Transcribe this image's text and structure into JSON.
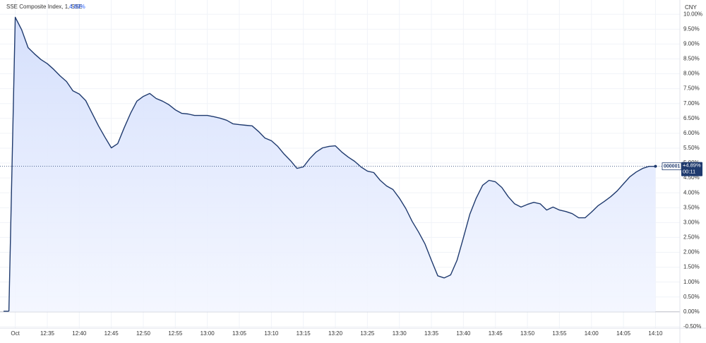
{
  "chart_data": {
    "type": "area",
    "title": "SSE Composite Index, 1, SSE",
    "header_change": "4.89%",
    "currency": "CNY",
    "last_label": {
      "symbol": "000001",
      "change": "+4.89%",
      "countdown": "00:11"
    },
    "color": "#1f3a6e",
    "fill": "#dce6fd",
    "x": [
      "12:29",
      "12:30",
      "12:31",
      "12:32",
      "12:33",
      "12:34",
      "12:35",
      "12:36",
      "12:37",
      "12:38",
      "12:39",
      "12:40",
      "12:41",
      "12:42",
      "12:43",
      "12:44",
      "12:45",
      "12:46",
      "12:47",
      "12:48",
      "12:49",
      "12:50",
      "12:51",
      "12:52",
      "12:53",
      "12:54",
      "12:55",
      "12:56",
      "12:57",
      "12:58",
      "12:59",
      "13:00",
      "13:01",
      "13:02",
      "13:03",
      "13:04",
      "13:05",
      "13:06",
      "13:07",
      "13:08",
      "13:09",
      "13:10",
      "13:11",
      "13:12",
      "13:13",
      "13:14",
      "13:15",
      "13:16",
      "13:17",
      "13:18",
      "13:19",
      "13:20",
      "13:21",
      "13:22",
      "13:23",
      "13:24",
      "13:25",
      "13:26",
      "13:27",
      "13:28",
      "13:29",
      "13:30",
      "13:31",
      "13:32",
      "13:33",
      "13:34",
      "13:35",
      "13:36",
      "13:37",
      "13:38",
      "13:39",
      "13:40",
      "13:41",
      "13:42",
      "13:43",
      "13:44",
      "13:45",
      "13:46",
      "13:47",
      "13:48",
      "13:49",
      "13:50",
      "13:51",
      "13:52",
      "13:53",
      "13:54",
      "13:55",
      "13:56",
      "13:57",
      "13:58",
      "13:59",
      "14:00",
      "14:01",
      "14:02",
      "14:03",
      "14:04",
      "14:05",
      "14:06",
      "14:07",
      "14:08",
      "14:09",
      "14:10"
    ],
    "values": [
      0.02,
      9.9,
      9.48,
      8.88,
      8.67,
      8.48,
      8.34,
      8.15,
      7.93,
      7.74,
      7.43,
      7.32,
      7.1,
      6.67,
      6.25,
      5.87,
      5.51,
      5.65,
      6.18,
      6.67,
      7.08,
      7.24,
      7.34,
      7.17,
      7.08,
      6.96,
      6.79,
      6.67,
      6.65,
      6.6,
      6.6,
      6.6,
      6.56,
      6.51,
      6.44,
      6.32,
      6.29,
      6.27,
      6.25,
      6.06,
      5.84,
      5.75,
      5.56,
      5.3,
      5.08,
      4.82,
      4.87,
      5.15,
      5.37,
      5.51,
      5.56,
      5.58,
      5.37,
      5.2,
      5.06,
      4.87,
      4.73,
      4.68,
      4.42,
      4.23,
      4.11,
      3.82,
      3.47,
      3.04,
      2.68,
      2.28,
      1.73,
      1.21,
      1.14,
      1.24,
      1.73,
      2.49,
      3.28,
      3.82,
      4.25,
      4.42,
      4.37,
      4.18,
      3.87,
      3.63,
      3.52,
      3.61,
      3.68,
      3.63,
      3.42,
      3.52,
      3.42,
      3.37,
      3.3,
      3.16,
      3.16,
      3.35,
      3.56,
      3.71,
      3.87,
      4.06,
      4.3,
      4.54,
      4.7,
      4.82,
      4.89,
      4.89
    ],
    "xticks": [
      {
        "value": "12:30",
        "label": "Oct"
      },
      "12:35",
      "12:40",
      "12:45",
      "12:50",
      "12:55",
      "13:00",
      "13:05",
      "13:10",
      "13:15",
      "13:20",
      "13:25",
      "13:30",
      "13:35",
      "13:40",
      "13:45",
      "13:50",
      "13:55",
      "14:00",
      "14:05",
      "14:10"
    ],
    "xlim": [
      "12:28",
      "14:14"
    ],
    "ylim": [
      -0.55,
      10.48
    ],
    "yticks": [
      {
        "value": -0.5,
        "label": "-0.50%"
      },
      {
        "value": 0,
        "label": "0.00%"
      },
      {
        "value": 0.5,
        "label": "0.50%"
      },
      {
        "value": 1,
        "label": "1.00%"
      },
      {
        "value": 1.5,
        "label": "1.50%"
      },
      {
        "value": 2,
        "label": "2.00%"
      },
      {
        "value": 2.5,
        "label": "2.50%"
      },
      {
        "value": 3,
        "label": "3.00%"
      },
      {
        "value": 3.5,
        "label": "3.50%"
      },
      {
        "value": 4,
        "label": "4.00%"
      },
      {
        "value": 4.5,
        "label": "4.50%"
      },
      {
        "value": 5,
        "label": "5.00%"
      },
      {
        "value": 5.5,
        "label": "5.50%"
      },
      {
        "value": 6,
        "label": "6.00%"
      },
      {
        "value": 6.5,
        "label": "6.50%"
      },
      {
        "value": 7,
        "label": "7.00%"
      },
      {
        "value": 7.5,
        "label": "7.50%"
      },
      {
        "value": 8,
        "label": "8.00%"
      },
      {
        "value": 8.5,
        "label": "8.50%"
      },
      {
        "value": 9,
        "label": "9.00%"
      },
      {
        "value": 9.5,
        "label": "9.50%"
      },
      {
        "value": 10,
        "label": "10.00%"
      }
    ],
    "grid": true
  }
}
